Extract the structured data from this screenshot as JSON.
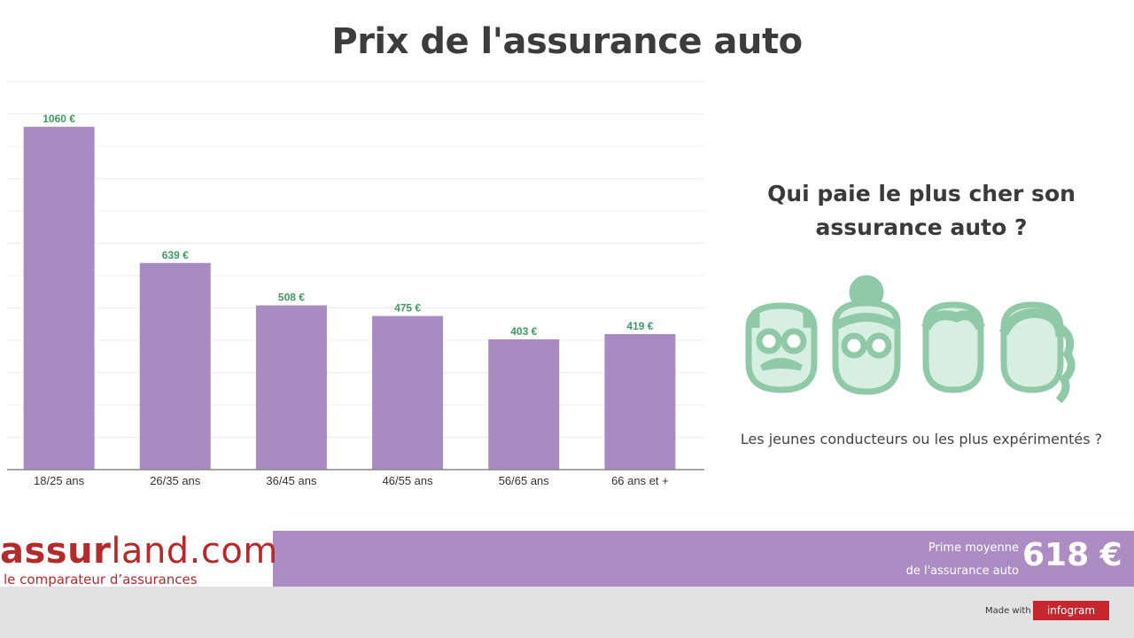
{
  "title": "Prix de l'assurance auto",
  "chart_data": {
    "type": "bar",
    "categories": [
      "18/25 ans",
      "26/35 ans",
      "36/45 ans",
      "46/55 ans",
      "56/65 ans",
      "66 ans et +"
    ],
    "values": [
      1060,
      639,
      508,
      475,
      403,
      419
    ],
    "data_labels": [
      "1060 €",
      "639 €",
      "508 €",
      "475 €",
      "403 €",
      "419 €"
    ],
    "title": "",
    "xlabel": "",
    "ylabel": "",
    "ylim": [
      0,
      1200
    ],
    "grid": true,
    "legend": "none",
    "bar_color": "#a98bc3",
    "label_color": "#3e9a64"
  },
  "side": {
    "question_line1": "Qui paie le plus cher son",
    "question_line2": "assurance auto ?",
    "subtitle": "Les jeunes conducteurs ou les plus expérimentés ?",
    "icons": [
      "old-man-face-icon",
      "old-woman-face-icon",
      "young-man-face-icon",
      "young-woman-face-icon"
    ],
    "icon_color": "#8fc9a8"
  },
  "footer": {
    "logo_bold": "assur",
    "logo_light": "land.com",
    "logo_tagline": "le comparateur d’assurances",
    "avg_label_line1": "Prime moyenne",
    "avg_label_line2": "de l'assurance auto",
    "avg_value": "618 €",
    "made_with": "Made with",
    "brand": "infogram",
    "band_color": "#ad8cc4",
    "logo_color": "#b52a2a"
  }
}
